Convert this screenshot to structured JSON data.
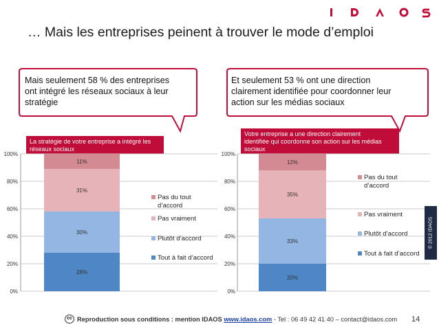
{
  "brand": {
    "logo": "IDAOS",
    "accent_color": "#c00c38"
  },
  "title": "… Mais les entreprises peinent à trouver le mode d’emploi",
  "bubbles": [
    {
      "text_lines": [
        "Mais seulement 58 % des entreprises",
        "ont intégré les réseaux sociaux à leur",
        "stratégie"
      ]
    },
    {
      "text_lines": [
        "Et seulement 53 % ont une direction",
        "clairement identifiée pour coordonner leur",
        "action sur les médias sociaux"
      ]
    }
  ],
  "questions": [
    {
      "lines": [
        "La stratégie de votre entreprise a intégré les",
        "réseaux sociaux"
      ]
    },
    {
      "lines": [
        "Votre entreprise a une direction clairement",
        "identifiée qui coordonne son action sur les médias",
        "sociaux"
      ]
    }
  ],
  "chart_data": [
    {
      "type": "bar",
      "stacked": true,
      "categories": [
        "La stratégie de votre entreprise a intégré les réseaux sociaux"
      ],
      "y_ticks": [
        "0%",
        "20%",
        "40%",
        "60%",
        "80%",
        "100%"
      ],
      "ylim": [
        0,
        100
      ],
      "series": [
        {
          "name": "Tout à fait d’accord",
          "values": [
            28
          ],
          "label": "28%",
          "color": "#4f86c6"
        },
        {
          "name": "Plutôt d’accord",
          "values": [
            30
          ],
          "label": "30%",
          "color": "#93b6e2"
        },
        {
          "name": "Pas vraiment",
          "values": [
            31
          ],
          "label": "31%",
          "color": "#e6b3b8"
        },
        {
          "name": "Pas du tout d’accord",
          "values": [
            11
          ],
          "label": "11%",
          "color": "#d38a92"
        }
      ],
      "legend": [
        {
          "name": "Pas du tout",
          "name2": "d’accord",
          "color": "#d38a92"
        },
        {
          "name": "Pas vraiment",
          "color": "#e6b3b8"
        },
        {
          "name": "Plutôt d’accord",
          "color": "#93b6e2"
        },
        {
          "name": "Tout à fait d’accord",
          "color": "#4f86c6"
        }
      ]
    },
    {
      "type": "bar",
      "stacked": true,
      "categories": [
        "Votre entreprise a une direction clairement identifiée qui coordonne son action sur les médias sociaux"
      ],
      "y_ticks": [
        "0%",
        "20%",
        "40%",
        "60%",
        "80%",
        "100%"
      ],
      "ylim": [
        0,
        100
      ],
      "series": [
        {
          "name": "Tout à fait d’accord",
          "values": [
            20
          ],
          "label": "20%",
          "color": "#4f86c6"
        },
        {
          "name": "Plutôt d’accord",
          "values": [
            33
          ],
          "label": "33%",
          "color": "#93b6e2"
        },
        {
          "name": "Pas vraiment",
          "values": [
            35
          ],
          "label": "35%",
          "color": "#e6b3b8"
        },
        {
          "name": "Pas du tout d’accord",
          "values": [
            12
          ],
          "label": "12%",
          "color": "#d38a92"
        }
      ],
      "legend": [
        {
          "name": "Pas du tout",
          "name2": "d’accord",
          "color": "#d38a92"
        },
        {
          "name": "Pas vraiment",
          "color": "#e6b3b8"
        },
        {
          "name": "Plutôt d’accord",
          "color": "#93b6e2"
        },
        {
          "name": "Tout à fait d’accord",
          "color": "#4f86c6"
        }
      ]
    }
  ],
  "side_copyright": "© 2012 IDAOS",
  "footer": {
    "cc": "cc",
    "lead": "Reproduction sous conditions : mention IDAOS",
    "link": "www.idaos.com",
    "rest": " - Tel : 06 49 42 41 40 – contact@idaos.com",
    "page": "14"
  }
}
